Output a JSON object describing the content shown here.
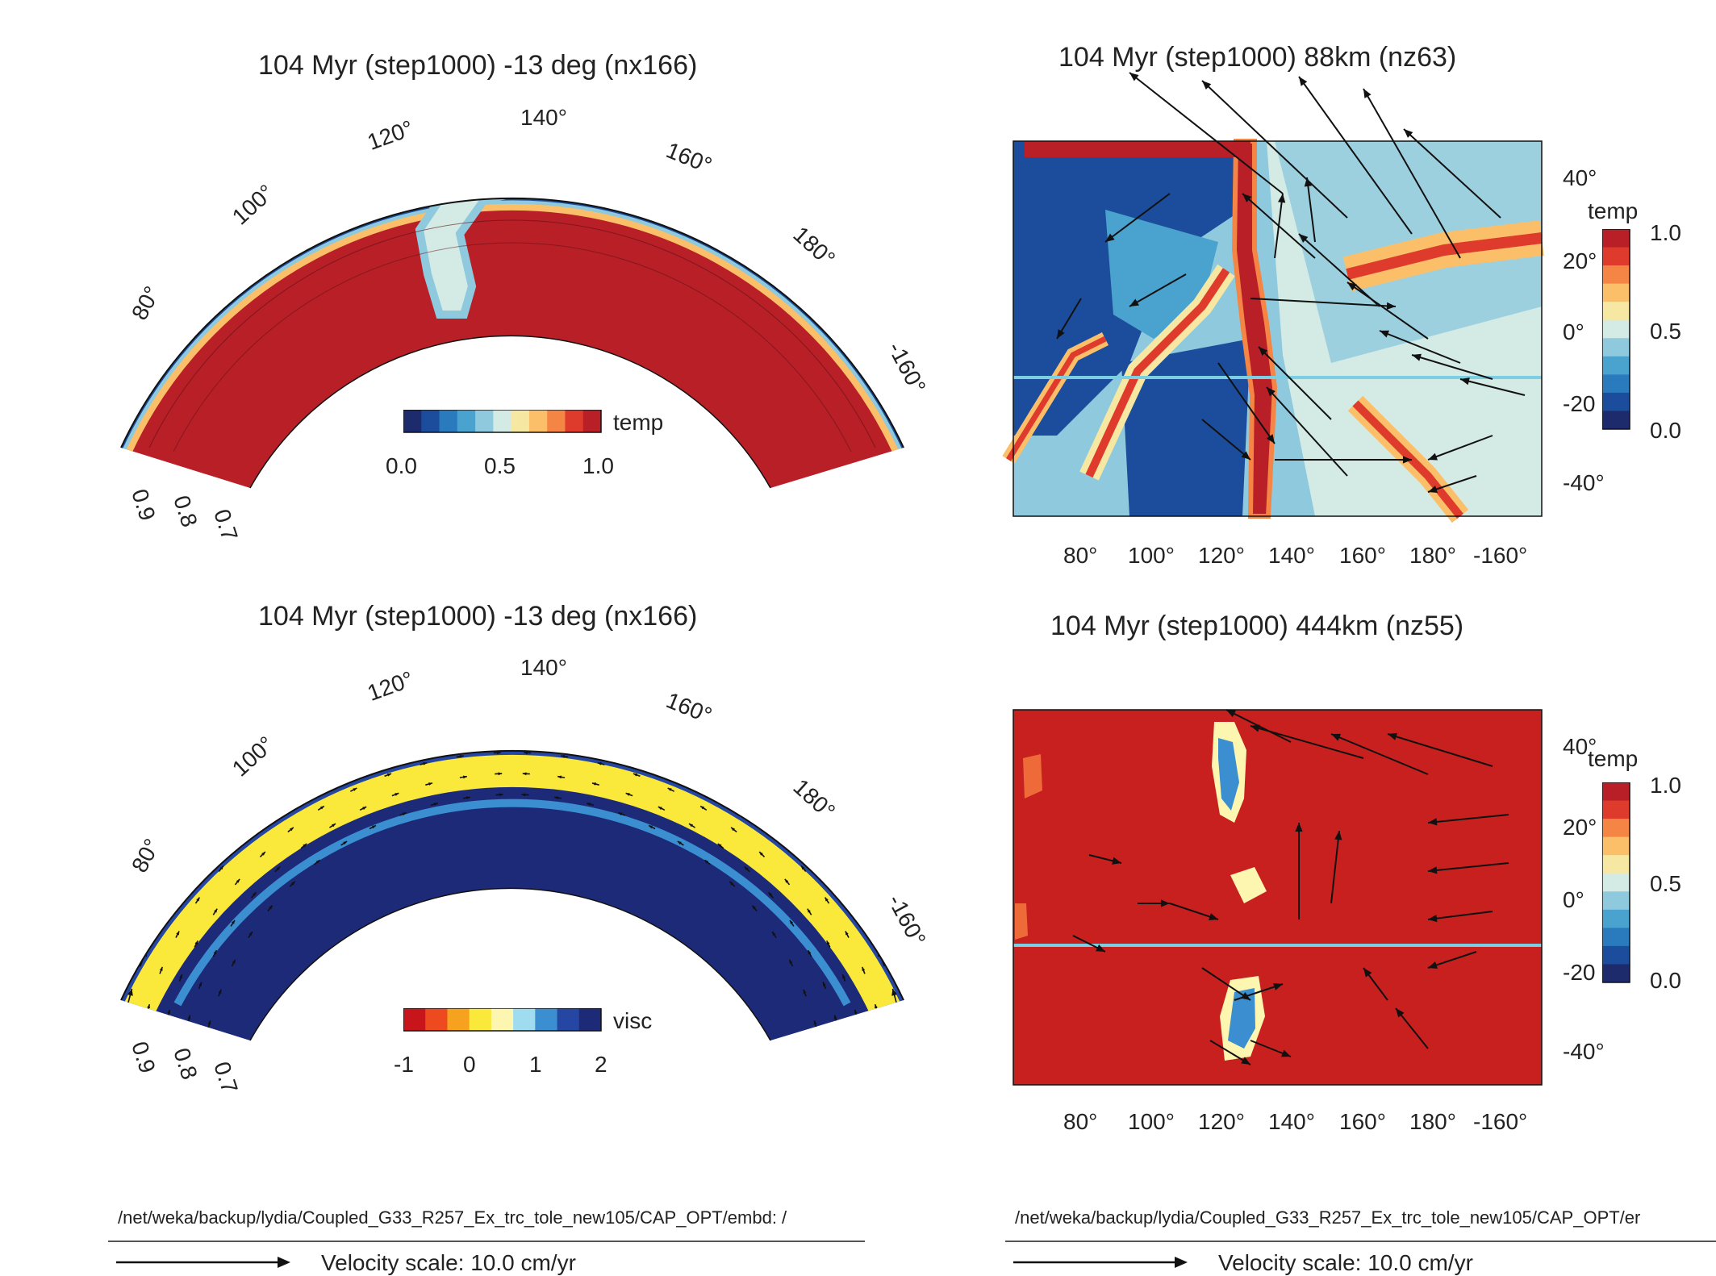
{
  "colors": {
    "temp_scale": [
      "#1d2a6b",
      "#1c4d9c",
      "#2a7bbd",
      "#4aa2cf",
      "#8fc9dd",
      "#d4ebe5",
      "#f6e7a2",
      "#fbbf6a",
      "#f58545",
      "#de3b2c",
      "#b81f27"
    ],
    "visc_scale": [
      "#c8151b",
      "#ee4a1f",
      "#f7a21e",
      "#fae83b",
      "#fdf6b0",
      "#9fdcef",
      "#3b8fd1",
      "#2547a3",
      "#1c2a78"
    ],
    "slice_cyan": "#7ccfe2"
  },
  "panels": {
    "top_left": {
      "title": "104 Myr (step1000) -13 deg (nx166)",
      "lon_labels": [
        "80°",
        "100°",
        "120°",
        "140°",
        "160°",
        "180°",
        "-160°"
      ],
      "radius_labels": [
        "0.9",
        "0.8",
        "0.7"
      ],
      "colorbar": {
        "label": "temp",
        "ticks": [
          "0.0",
          "0.5",
          "1.0"
        ]
      }
    },
    "bottom_left": {
      "title": "104 Myr (step1000) -13 deg (nx166)",
      "lon_labels": [
        "80°",
        "100°",
        "120°",
        "140°",
        "160°",
        "180°",
        "-160°"
      ],
      "radius_labels": [
        "0.9",
        "0.8",
        "0.7"
      ],
      "colorbar": {
        "label": "visc",
        "ticks": [
          "-1",
          "0",
          "1",
          "2"
        ]
      }
    },
    "top_right": {
      "title": "104 Myr (step1000) 88km (nz63)",
      "x_ticks": [
        "80°",
        "100°",
        "120°",
        "140°",
        "160°",
        "180°",
        "-160°"
      ],
      "y_ticks": [
        "40°",
        "20°",
        "0°",
        "-20",
        "-40°"
      ],
      "colorbar": {
        "label": "temp",
        "ticks": [
          "1.0",
          "0.5",
          "0.0"
        ]
      }
    },
    "bottom_right": {
      "title": "104 Myr (step1000) 444km (nz55)",
      "x_ticks": [
        "80°",
        "100°",
        "120°",
        "140°",
        "160°",
        "180°",
        "-160°"
      ],
      "y_ticks": [
        "40°",
        "20°",
        "0°",
        "-20",
        "-40°"
      ],
      "colorbar": {
        "label": "temp",
        "ticks": [
          "1.0",
          "0.5",
          "0.0"
        ]
      }
    }
  },
  "footer": {
    "left_path": "/net/weka/backup/lydia/Coupled_G33_R257_Ex_trc_tole_new105/CAP_OPT/embd: /",
    "right_path": "/net/weka/backup/lydia/Coupled_G33_R257_Ex_trc_tole_new105/CAP_OPT/er",
    "left_scale_label": "Velocity scale: 10.0 cm/yr",
    "right_scale_label": "Velocity scale: 10.0 cm/yr"
  }
}
